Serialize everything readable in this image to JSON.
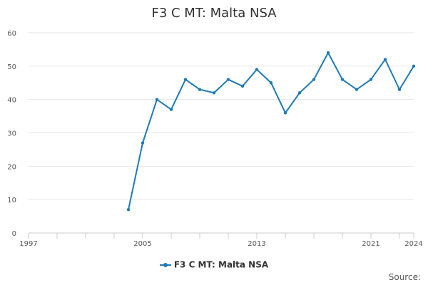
{
  "chart_data": {
    "type": "line",
    "title": "F3 C MT: Malta NSA",
    "xlabel": "",
    "ylabel": "",
    "xlim": [
      1997,
      2024
    ],
    "ylim": [
      0,
      60
    ],
    "x_ticks": [
      1997,
      2005,
      2013,
      2021,
      2024
    ],
    "y_ticks": [
      0,
      10,
      20,
      30,
      40,
      50,
      60
    ],
    "grid": "horizontal",
    "legend_position": "bottom",
    "series": [
      {
        "name": "F3 C MT: Malta NSA",
        "color": "#1f7ab8",
        "x": [
          2004,
          2005,
          2006,
          2007,
          2008,
          2009,
          2010,
          2011,
          2012,
          2013,
          2014,
          2015,
          2016,
          2017,
          2018,
          2019,
          2020,
          2021,
          2022,
          2023,
          2024
        ],
        "values": [
          7,
          27,
          40,
          37,
          46,
          43,
          42,
          46,
          44,
          49,
          45,
          36,
          42,
          46,
          54,
          46,
          43,
          46,
          52,
          43,
          50
        ]
      }
    ]
  },
  "source_label": "Source:"
}
